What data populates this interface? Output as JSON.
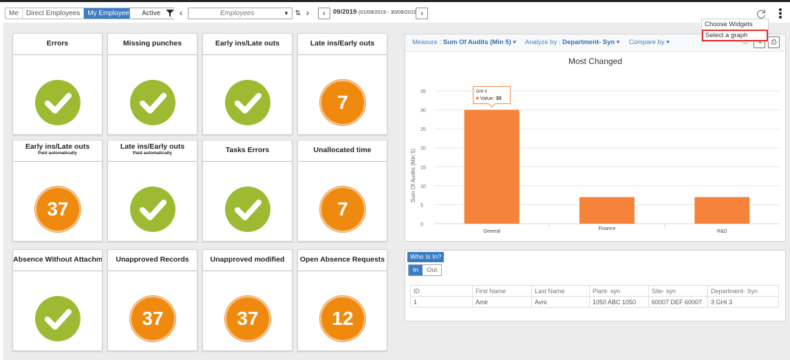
{
  "toolbar": {
    "scope_tabs": [
      {
        "label": "Me",
        "active": false
      },
      {
        "label": "Direct Employees",
        "active": false
      },
      {
        "label": "My Employees",
        "active": true
      }
    ],
    "status_filter": "Active",
    "employees_placeholder": "Employees",
    "period_label": "09/2019",
    "period_range": "(01/09/2019 - 30/09/2019)"
  },
  "menu": {
    "items": [
      "Choose Widgets",
      "Select a graph"
    ]
  },
  "cards": [
    {
      "title": "Errors",
      "subtitle": "",
      "type": "check",
      "value": ""
    },
    {
      "title": "Missing punches",
      "subtitle": "",
      "type": "check",
      "value": ""
    },
    {
      "title": "Early ins/Late outs",
      "subtitle": "",
      "type": "check",
      "value": ""
    },
    {
      "title": "Late ins/Early outs",
      "subtitle": "",
      "type": "number",
      "value": "7"
    },
    {
      "title": "Early ins/Late outs",
      "subtitle": "Paid automatically",
      "type": "number",
      "value": "37"
    },
    {
      "title": "Late ins/Early outs",
      "subtitle": "Paid automatically",
      "type": "check",
      "value": ""
    },
    {
      "title": "Tasks Errors",
      "subtitle": "",
      "type": "check",
      "value": ""
    },
    {
      "title": "Unallocated time",
      "subtitle": "",
      "type": "number",
      "value": "7"
    },
    {
      "title": "Absence Without Attachment",
      "subtitle": "",
      "type": "check",
      "value": ""
    },
    {
      "title": "Unapproved Records",
      "subtitle": "",
      "type": "number",
      "value": "37"
    },
    {
      "title": "Unapproved modified",
      "subtitle": "",
      "type": "number",
      "value": "37"
    },
    {
      "title": "Open Absence Requests",
      "subtitle": "",
      "type": "number",
      "value": "12"
    }
  ],
  "chart_toolbar": {
    "measure_label": "Measure :",
    "measure_value": "Sum Of Audits (Min 5)",
    "analyze_label": "Analyze by :",
    "analyze_value": "Department- Syn",
    "compare_label": "Compare by"
  },
  "chart_data": {
    "type": "bar",
    "title": "Most Changed",
    "categories": [
      "General",
      "Finance",
      "R&D"
    ],
    "values": [
      30,
      7,
      7
    ],
    "ylabel": "Sum Of Audits (Min 5)",
    "ylim": [
      0,
      35
    ],
    "yticks": [
      0,
      5,
      10,
      15,
      20,
      25,
      30,
      35
    ],
    "grid": true,
    "bar_color": "#f5833a",
    "tooltip": {
      "category": "GHI 4",
      "label": "Value:",
      "value": "30"
    }
  },
  "who": {
    "title": "Who Is In?",
    "tabs": [
      {
        "label": "In",
        "active": true
      },
      {
        "label": "Out",
        "active": false
      }
    ],
    "columns": [
      "ID",
      "First Name",
      "Last Name",
      "Plant- syn",
      "Site- syn",
      "Department- Syn"
    ],
    "rows": [
      [
        "1",
        "Amir",
        "Avni",
        "1050 ABC 1050",
        "60007 DEF 60007",
        "3 GHI 3"
      ]
    ]
  },
  "colors": {
    "accent": "#3b7cc4",
    "ok": "#9dbb32",
    "warn": "#ef8a0e"
  }
}
